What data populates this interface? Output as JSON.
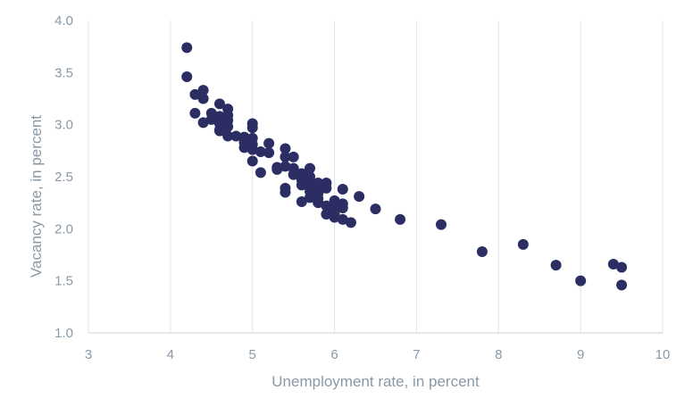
{
  "chart_data": {
    "type": "scatter",
    "xlabel": "Unemployment rate, in percent",
    "ylabel": "Vacancy rate, in percent",
    "xlim": [
      3,
      10
    ],
    "ylim": [
      1.0,
      4.0
    ],
    "xticks": [
      "3",
      "4",
      "5",
      "6",
      "7",
      "8",
      "9",
      "10"
    ],
    "yticks": [
      "1.0",
      "1.5",
      "2.0",
      "2.5",
      "3.0",
      "3.5",
      "4.0"
    ],
    "grid": "vertical",
    "colors": {
      "point": "#2b2d63",
      "grid": "#dfe4e8",
      "axis": "#c9d1d8",
      "text": "#8a99a6"
    },
    "series": [
      {
        "x": [
          4.2,
          4.2,
          4.3,
          4.4,
          4.4,
          4.3,
          4.4,
          4.5,
          4.5,
          4.6,
          4.6,
          4.6,
          4.6,
          4.7,
          4.7,
          4.7,
          4.7,
          4.6,
          4.7,
          4.8,
          4.9,
          4.9,
          4.9,
          5.0,
          5.0,
          5.0,
          5.0,
          5.0,
          5.1,
          5.2,
          5.2,
          5.0,
          5.1,
          5.3,
          5.3,
          5.4,
          5.4,
          5.5,
          5.4,
          5.5,
          5.5,
          5.6,
          5.6,
          5.7,
          5.7,
          5.6,
          5.7,
          5.7,
          5.8,
          5.8,
          5.9,
          5.9,
          5.8,
          5.8,
          5.7,
          5.8,
          5.9,
          6.0,
          6.0,
          6.1,
          6.1,
          6.0,
          5.9,
          6.0,
          6.1,
          6.2,
          6.1,
          5.6,
          5.4,
          5.4,
          6.3,
          6.5,
          6.8,
          7.3,
          7.8,
          8.3,
          8.7,
          9.0,
          9.4,
          9.5,
          9.5
        ],
        "y": [
          3.74,
          3.46,
          3.29,
          3.33,
          3.25,
          3.11,
          3.02,
          3.11,
          3.05,
          3.2,
          3.08,
          3.01,
          2.95,
          3.15,
          3.09,
          3.04,
          2.98,
          2.94,
          2.89,
          2.89,
          2.88,
          2.83,
          2.78,
          3.01,
          2.97,
          2.87,
          2.81,
          2.76,
          2.74,
          2.82,
          2.73,
          2.65,
          2.54,
          2.59,
          2.57,
          2.77,
          2.69,
          2.69,
          2.6,
          2.58,
          2.52,
          2.53,
          2.47,
          2.58,
          2.5,
          2.42,
          2.43,
          2.36,
          2.44,
          2.39,
          2.44,
          2.39,
          2.34,
          2.29,
          2.3,
          2.25,
          2.22,
          2.2,
          2.27,
          2.24,
          2.2,
          2.14,
          2.14,
          2.11,
          2.09,
          2.06,
          2.38,
          2.26,
          2.35,
          2.39,
          2.31,
          2.19,
          2.09,
          2.04,
          1.78,
          1.85,
          1.65,
          1.5,
          1.66,
          1.63,
          1.46
        ]
      }
    ]
  }
}
